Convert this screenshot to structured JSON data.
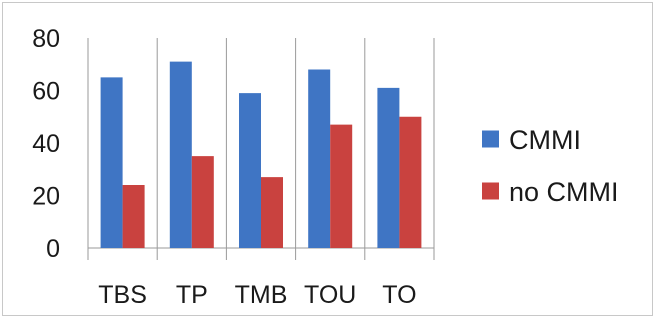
{
  "chart_data": {
    "type": "bar",
    "categories": [
      "TBS",
      "TP",
      "TMB",
      "TOU",
      "TO"
    ],
    "series": [
      {
        "name": "CMMI",
        "values": [
          65,
          71,
          59,
          68,
          61
        ],
        "color": "#3f75c4"
      },
      {
        "name": "no CMMI",
        "values": [
          24,
          35,
          27,
          47,
          50
        ],
        "color": "#c9423f"
      }
    ],
    "ylim": [
      0,
      80
    ],
    "yticks": [
      0,
      20,
      40,
      60,
      80
    ],
    "title": "",
    "xlabel": "",
    "ylabel": "",
    "grid": "vertical separators between categories",
    "legend_position": "right"
  }
}
